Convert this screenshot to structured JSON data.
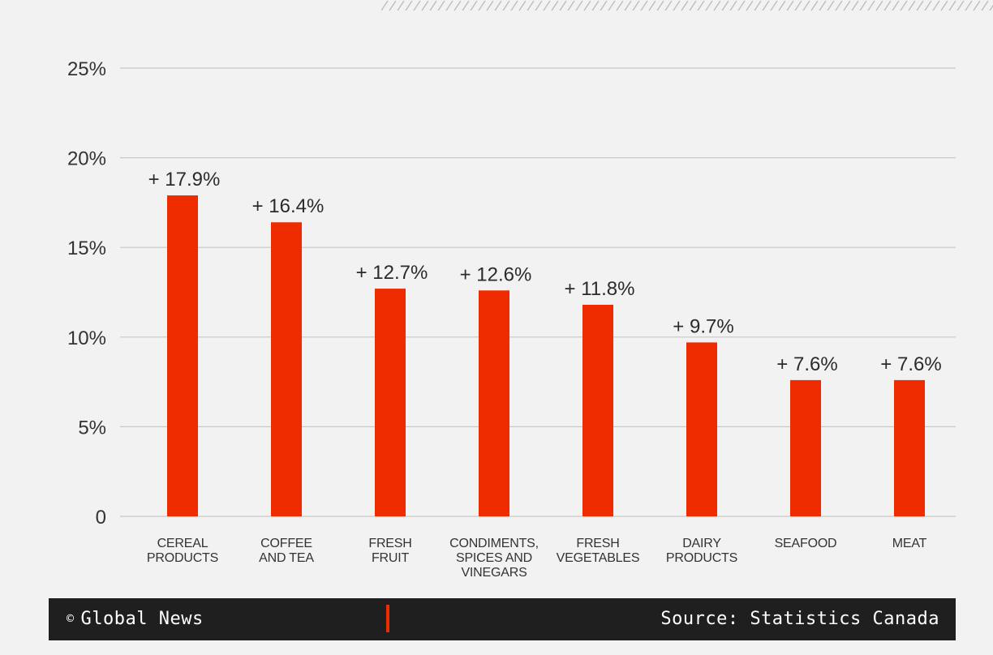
{
  "chart_data": {
    "type": "bar",
    "categories": [
      [
        "CEREAL",
        "PRODUCTS"
      ],
      [
        "COFFEE",
        "AND TEA"
      ],
      [
        "FRESH",
        "FRUIT"
      ],
      [
        "CONDIMENTS,",
        "SPICES AND",
        "VINEGARS"
      ],
      [
        "FRESH",
        "VEGETABLES"
      ],
      [
        "DAIRY",
        "PRODUCTS"
      ],
      [
        "SEAFOOD"
      ],
      [
        "MEAT"
      ]
    ],
    "values": [
      17.9,
      16.4,
      12.7,
      12.6,
      11.8,
      9.7,
      7.6,
      7.6
    ],
    "data_labels": [
      "+ 17.9%",
      "+ 16.4%",
      "+ 12.7%",
      "+ 12.6%",
      "+ 11.8%",
      "+ 9.7%",
      "+ 7.6%",
      "+ 7.6%"
    ],
    "ylim": [
      0,
      25
    ],
    "yticks": [
      0,
      5,
      10,
      15,
      20,
      25
    ],
    "ytick_labels": [
      "0",
      "5%",
      "10%",
      "15%",
      "20%",
      "25%"
    ],
    "grid": true,
    "bar_color": "#ef2b00",
    "title": "",
    "xlabel": "",
    "ylabel": ""
  },
  "footer": {
    "copyright_symbol": "©",
    "brand": "Global News",
    "source": "Source: Statistics Canada"
  },
  "colors": {
    "background": "#f2f2f2",
    "footer_bg": "#1f1f1f",
    "accent": "#ef2b00",
    "gridline": "#c8c8c8"
  }
}
